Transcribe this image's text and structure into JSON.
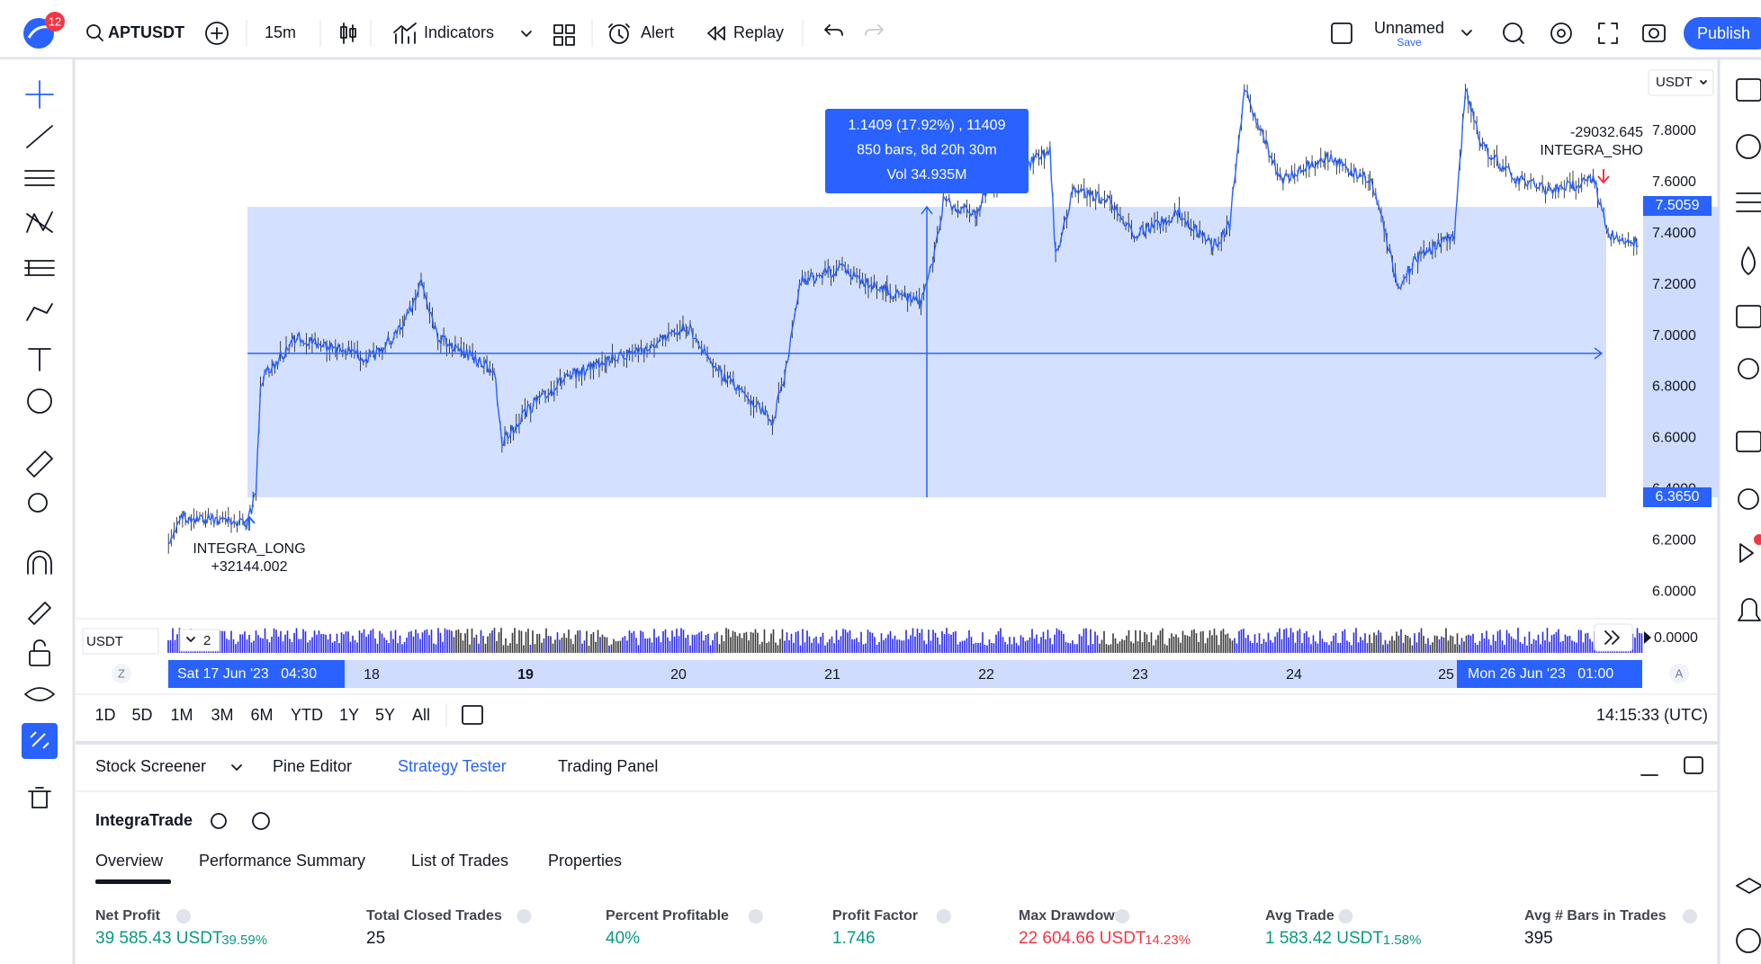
{
  "top_bar": {
    "notification_count": "12",
    "symbol": "APTUSDT",
    "interval": "15m",
    "indicators": "Indicators",
    "alert": "Alert",
    "replay": "Replay",
    "layout_name": "Unnamed",
    "layout_status": "Save",
    "publish": "Publish"
  },
  "chart": {
    "currency": "USDT",
    "price_labels": [
      "7.8000",
      "7.6000",
      "7.4000",
      "7.2000",
      "7.0000",
      "6.8000",
      "6.6000",
      "6.4000",
      "6.2000",
      "6.0000"
    ],
    "current_price": "7.5059",
    "range_low": "6.3650",
    "volume_axis": "0.0000",
    "volume_currency": "USDT",
    "volume_count": "2",
    "measure_tooltip": [
      "1.1409 (17.92%) , 11409",
      "850 bars, 8d 20h 30m",
      "Vol 34.935M"
    ],
    "long_label": [
      "INTEGRA_LONG",
      "+32144.002"
    ],
    "short_label": [
      "-29032.645",
      "INTEGRA_SHO"
    ],
    "time_labels": [
      "18",
      "19",
      "20",
      "21",
      "22",
      "23",
      "24",
      "25"
    ],
    "range_start": "Sat 17 Jun '23   04:30",
    "range_end": "Mon 26 Jun '23   01:00",
    "left_marker": "Z",
    "right_marker": "A"
  },
  "range_bar": {
    "periods": [
      "1D",
      "5D",
      "1M",
      "3M",
      "6M",
      "YTD",
      "1Y",
      "5Y",
      "All"
    ],
    "clock": "14:15:33 (UTC)"
  },
  "panel": {
    "tabs": [
      "Stock Screener",
      "Pine Editor",
      "Strategy Tester",
      "Trading Panel"
    ],
    "strategy": "IntegraTrade",
    "subtabs": [
      "Overview",
      "Performance Summary",
      "List of Trades",
      "Properties"
    ],
    "metrics": [
      {
        "label": "Net Profit",
        "value": "39 585.43 USDT",
        "percent": "39.59%"
      },
      {
        "label": "Total Closed Trades",
        "value": "25"
      },
      {
        "label": "Percent Profitable",
        "value": "40%"
      },
      {
        "label": "Profit Factor",
        "value": "1.746"
      },
      {
        "label": "Max Drawdown",
        "value": "22 604.66 USDT",
        "percent": "14.23%"
      },
      {
        "label": "Avg Trade",
        "value": "1 583.42 USDT",
        "percent": "1.58%"
      },
      {
        "label": "Avg # Bars in Trades",
        "value": "395"
      }
    ]
  }
}
